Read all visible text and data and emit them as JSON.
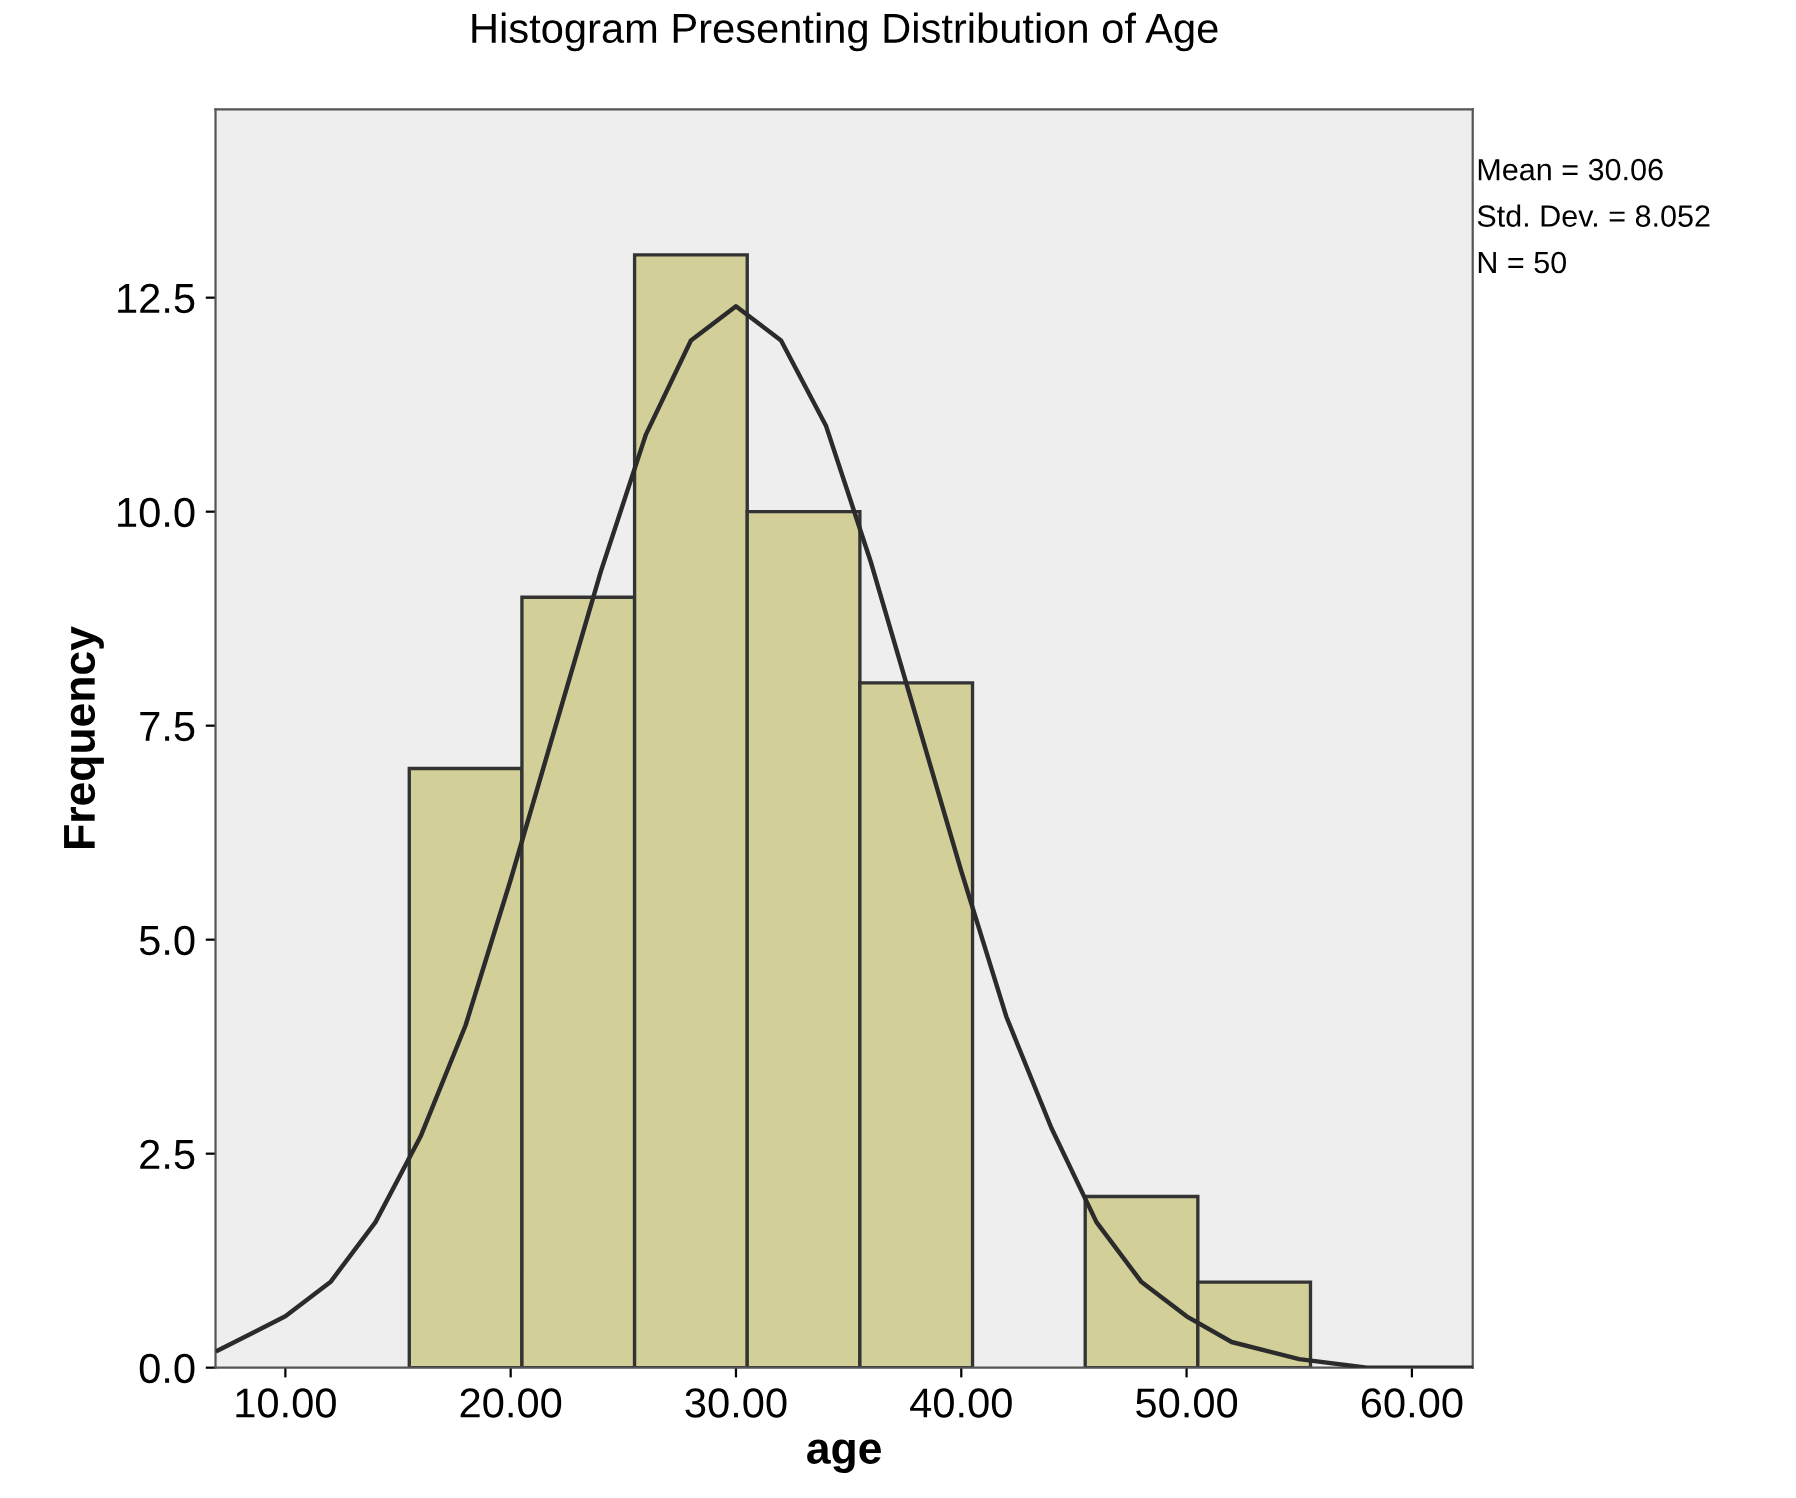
{
  "chart_data": {
    "type": "histogram",
    "title": "Histogram Presenting Distribution of Age",
    "xlabel": "age",
    "ylabel": "Frequency",
    "bins": [
      15.5,
      20.5,
      25.5,
      30.5,
      35.5,
      40.5,
      45.5,
      50.5,
      55.5
    ],
    "values": [
      7,
      9,
      13,
      10,
      8,
      0,
      2,
      1
    ],
    "color": "#d3cf99",
    "series": [
      {
        "type": "line",
        "color": "#2b2b2b",
        "x": [
          7,
          10,
          12,
          14,
          16,
          18,
          20,
          22,
          24,
          26,
          28,
          30,
          32,
          34,
          36,
          38,
          40,
          42,
          44,
          46,
          48,
          50,
          52,
          55,
          58,
          62.7
        ],
        "values": [
          0.2,
          0.6,
          1.0,
          1.7,
          2.7,
          4.0,
          5.7,
          7.5,
          9.3,
          10.9,
          12.0,
          12.4,
          12.0,
          11.0,
          9.4,
          7.6,
          5.8,
          4.1,
          2.8,
          1.7,
          1.0,
          0.6,
          0.3,
          0.1,
          0.0,
          0.0
        ]
      }
    ],
    "xlim": [
      6.9,
      62.7
    ],
    "ylim": [
      0,
      14.7
    ],
    "xticks": [
      {
        "value": 10,
        "label": "10.00"
      },
      {
        "value": 20,
        "label": "20.00"
      },
      {
        "value": 30,
        "label": "30.00"
      },
      {
        "value": 40,
        "label": "40.00"
      },
      {
        "value": 50,
        "label": "50.00"
      },
      {
        "value": 60,
        "label": "60.00"
      }
    ],
    "yticks": [
      {
        "value": 0,
        "label": "0.0"
      },
      {
        "value": 2.5,
        "label": "2.5"
      },
      {
        "value": 5,
        "label": "5.0"
      },
      {
        "value": 7.5,
        "label": "7.5"
      },
      {
        "value": 10,
        "label": "10.0"
      },
      {
        "value": 12.5,
        "label": "12.5"
      }
    ],
    "annotations": [
      "Mean = 30.06",
      "Std. Dev. = 8.052",
      "N = 50"
    ],
    "grid": false,
    "legend": false
  }
}
